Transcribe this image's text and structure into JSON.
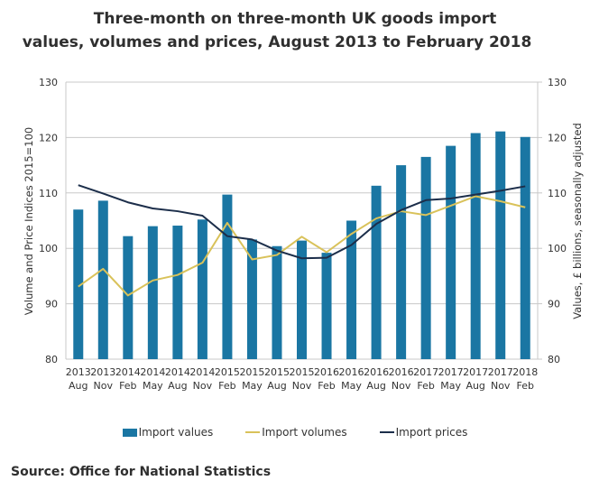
{
  "colors": {
    "values": "#1a76a3",
    "volumes": "#d9c25a",
    "prices": "#1c2e4a",
    "grid": "#c8c8c8"
  },
  "chart_data": {
    "type": "bar",
    "title_line1": "Three-month on three-month UK goods import",
    "title_line2": "values, volumes and prices, August 2013 to February 2018",
    "categories": [
      {
        "year": "2013",
        "month": "Aug"
      },
      {
        "year": "2013",
        "month": "Nov"
      },
      {
        "year": "2014",
        "month": "Feb"
      },
      {
        "year": "2014",
        "month": "May"
      },
      {
        "year": "2014",
        "month": "Aug"
      },
      {
        "year": "2014",
        "month": "Nov"
      },
      {
        "year": "2015",
        "month": "Feb"
      },
      {
        "year": "2015",
        "month": "May"
      },
      {
        "year": "2015",
        "month": "Aug"
      },
      {
        "year": "2015",
        "month": "Nov"
      },
      {
        "year": "2016",
        "month": "Feb"
      },
      {
        "year": "2016",
        "month": "May"
      },
      {
        "year": "2016",
        "month": "Aug"
      },
      {
        "year": "2016",
        "month": "Nov"
      },
      {
        "year": "2017",
        "month": "Feb"
      },
      {
        "year": "2017",
        "month": "May"
      },
      {
        "year": "2017",
        "month": "Aug"
      },
      {
        "year": "2017",
        "month": "Nov"
      },
      {
        "year": "2018",
        "month": "Feb"
      }
    ],
    "series": [
      {
        "name": "Import values",
        "type": "bar",
        "axis": "right",
        "values": [
          107.0,
          108.6,
          102.2,
          104.0,
          104.1,
          105.2,
          109.7,
          101.6,
          100.4,
          101.4,
          99.2,
          105.0,
          111.3,
          115.0,
          116.5,
          118.5,
          120.8,
          121.1,
          120.1
        ]
      },
      {
        "name": "Import volumes",
        "type": "line",
        "axis": "left",
        "values": [
          93.1,
          96.3,
          91.5,
          94.2,
          95.2,
          97.4,
          104.6,
          98.0,
          98.8,
          102.1,
          99.3,
          102.6,
          105.4,
          106.7,
          106.0,
          107.7,
          109.4,
          108.5,
          107.4
        ]
      },
      {
        "name": "Import prices",
        "type": "line",
        "axis": "left",
        "values": [
          111.4,
          109.9,
          108.3,
          107.2,
          106.7,
          105.9,
          102.2,
          101.6,
          99.6,
          98.2,
          98.3,
          100.6,
          104.4,
          106.9,
          108.7,
          109.0,
          109.7,
          110.4,
          111.2
        ]
      }
    ],
    "ylabel": "Volume and Price Indices 2015=100",
    "y2label": "Values, £ billions, seasonally adjusted",
    "ylim": [
      80,
      130
    ],
    "y2lim": [
      80,
      130
    ],
    "yticks": [
      "80",
      "90",
      "100",
      "110",
      "120",
      "130"
    ],
    "y2ticks": [
      "80",
      "90",
      "100",
      "110",
      "120",
      "130"
    ],
    "grid": true,
    "legend_position": "bottom"
  },
  "legend": {
    "values": "Import values",
    "volumes": "Import volumes",
    "prices": "Import prices"
  },
  "source": "Source: Office for National Statistics"
}
